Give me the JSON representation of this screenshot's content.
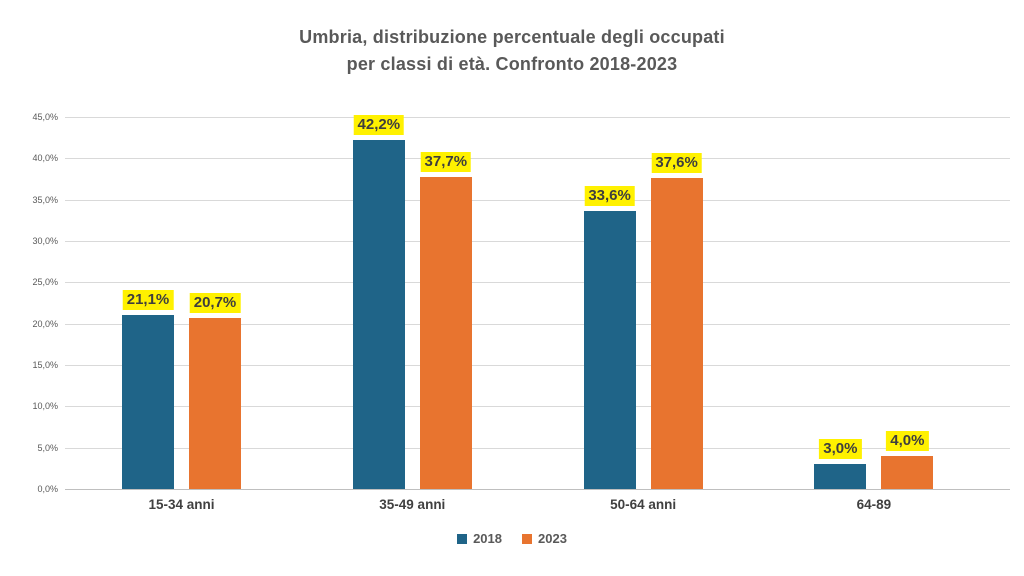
{
  "title": {
    "line1": "Umbria, distribuzione percentuale degli occupati",
    "line2": "per classi di età. Confronto 2018-2023"
  },
  "chart_data": {
    "type": "bar",
    "title": "Umbria, distribuzione percentuale degli occupati per classi di età. Confronto 2018-2023",
    "categories": [
      "15-34 anni",
      "35-49 anni",
      "50-64 anni",
      "64-89"
    ],
    "series": [
      {
        "name": "2018",
        "color": "#1f6488",
        "values": [
          21.1,
          42.2,
          33.6,
          3.0
        ],
        "labels": [
          "21,1%",
          "42,2%",
          "33,6%",
          "3,0%"
        ]
      },
      {
        "name": "2023",
        "color": "#e8742f",
        "values": [
          20.7,
          37.7,
          37.6,
          4.0
        ],
        "labels": [
          "20,7%",
          "37,7%",
          "37,6%",
          "4,0%"
        ]
      }
    ],
    "xlabel": "",
    "ylabel": "",
    "ylim": [
      0,
      45
    ],
    "ytick_labels": [
      "45,0%",
      "40,0%",
      "35,0%",
      "30,0%",
      "25,0%",
      "20,0%",
      "15,0%",
      "10,0%",
      "5,0%",
      "0,0%"
    ],
    "grid": true,
    "legend_position": "bottom",
    "data_label_highlight": "#fff100",
    "gridline_color": "#d9d9d9",
    "baseline_color": "#bfbfbf"
  }
}
